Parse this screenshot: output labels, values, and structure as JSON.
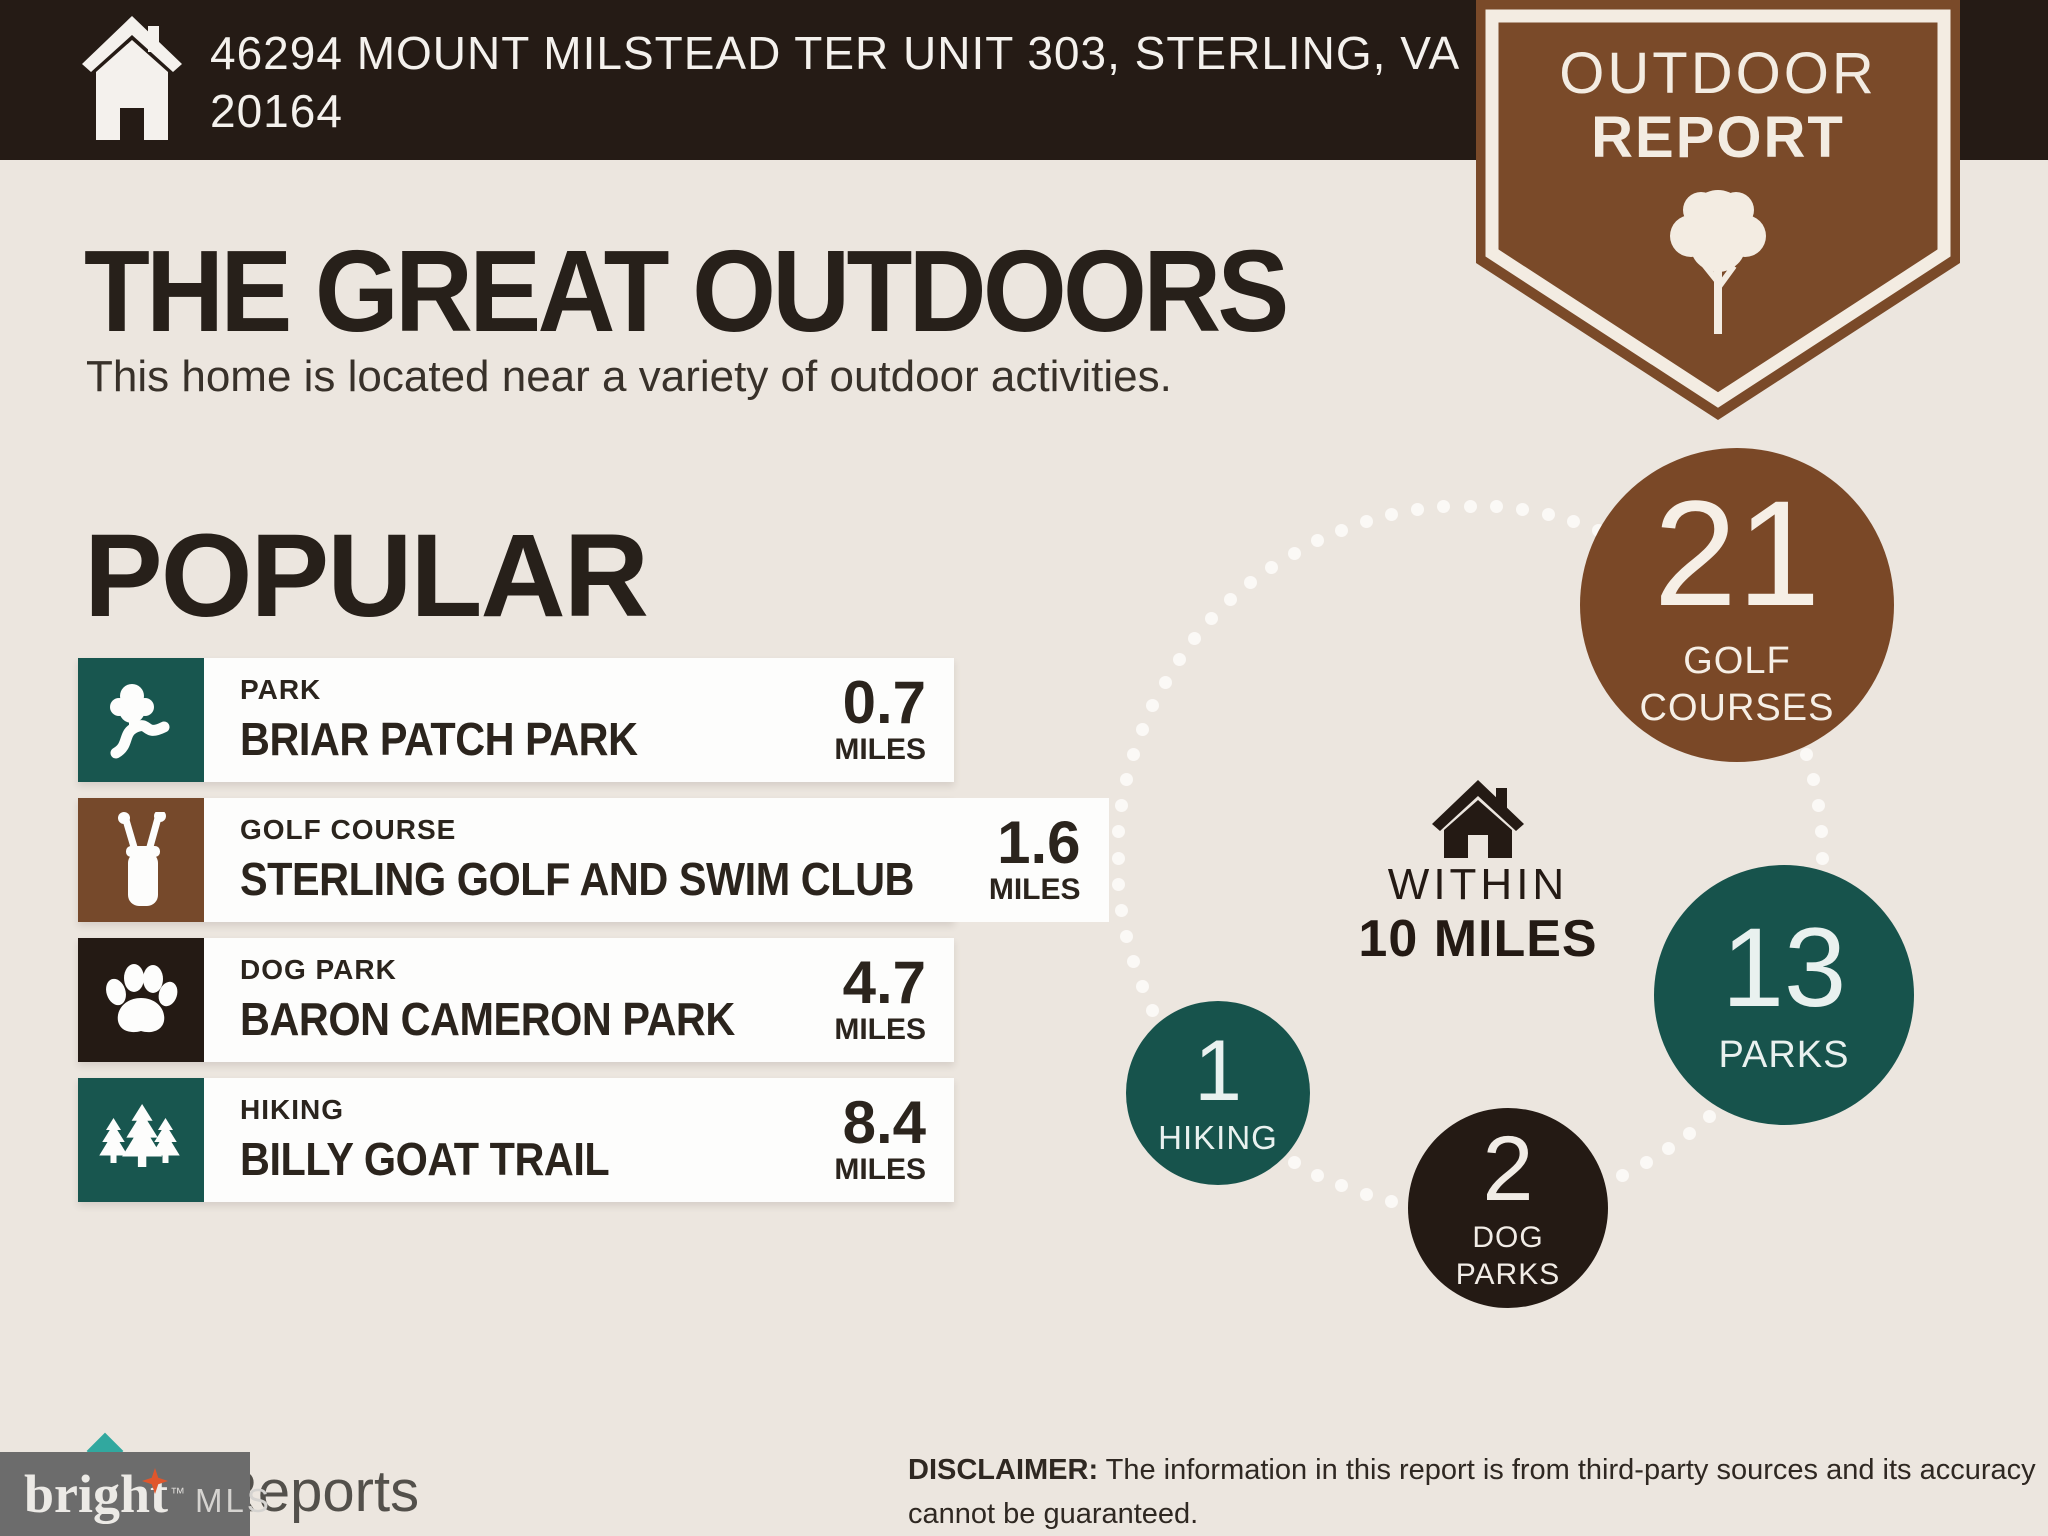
{
  "colors": {
    "background": "#ece6df",
    "top_bar": "#251b15",
    "brown": "#7a4827",
    "teal": "#17534c",
    "dark": "#241a14",
    "card_white": "#fdfdfc",
    "ring_dot": "#fbf9f6",
    "watermark_gray": "#6c6c6c",
    "logo_orange": "#e0562c",
    "logo_teal_diamond": "#31a89f"
  },
  "header": {
    "address_line1": "46294 MOUNT MILSTEAD TER UNIT 303, STERLING, VA",
    "address_line2": "20164"
  },
  "ribbon": {
    "line1": "OUTDOOR",
    "line2": "REPORT"
  },
  "intro": {
    "title": "THE GREAT OUTDOORS",
    "subtitle": "This home is located near a variety of outdoor activities."
  },
  "popular": {
    "heading": "POPULAR",
    "items": [
      {
        "category": "PARK",
        "name": "BRIAR PATCH PARK",
        "distance": "0.7",
        "unit": "MILES",
        "icon": "park-tree-path-icon",
        "icon_color": "#18564f"
      },
      {
        "category": "GOLF COURSE",
        "name": "STERLING GOLF AND SWIM CLUB",
        "distance": "1.6",
        "unit": "MILES",
        "icon": "golf-bag-icon",
        "icon_color": "#76492b"
      },
      {
        "category": "DOG PARK",
        "name": "BARON CAMERON PARK",
        "distance": "4.7",
        "unit": "MILES",
        "icon": "paw-icon",
        "icon_color": "#241a14"
      },
      {
        "category": "HIKING",
        "name": "BILLY GOAT TRAIL",
        "distance": "8.4",
        "unit": "MILES",
        "icon": "pine-trees-icon",
        "icon_color": "#18564f"
      }
    ]
  },
  "radial": {
    "center_icon": "house-icon",
    "within_line1": "WITHIN",
    "within_line2": "10 MILES",
    "bubbles": [
      {
        "id": "golf-courses",
        "value": "21",
        "label1": "GOLF",
        "label2": "COURSES",
        "color": "#7a4827"
      },
      {
        "id": "parks",
        "value": "13",
        "label1": "PARKS",
        "label2": "",
        "color": "#17534c"
      },
      {
        "id": "hiking",
        "value": "1",
        "label1": "HIKING",
        "label2": "",
        "color": "#17534c"
      },
      {
        "id": "dog-parks",
        "value": "2",
        "label1": "DOG",
        "label2": "PARKS",
        "color": "#241a14"
      }
    ]
  },
  "footer": {
    "disclaimer_label": "DISCLAIMER:",
    "disclaimer_text": " The information in this report is from third-party sources and its accuracy cannot be guaranteed.",
    "logo_primary": "bright",
    "logo_tm": "™",
    "logo_secondary": "MLS",
    "partial_text": "Reports"
  },
  "icons": {
    "header": "home-icon",
    "ribbon": "tree-icon",
    "row1": "park-tree-path-icon",
    "row2": "golf-bag-icon",
    "row3": "paw-icon",
    "row4": "pine-trees-icon",
    "ring_center": "house-icon",
    "logo": "sparkle-star-icon"
  }
}
